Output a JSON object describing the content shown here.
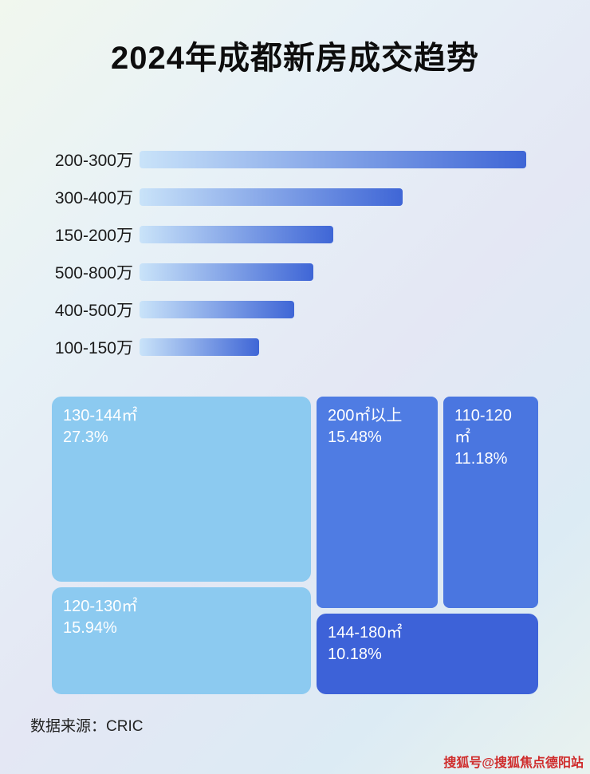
{
  "page": {
    "title": "2024年成都新房成交趋势",
    "source_label": "数据来源：CRIC",
    "watermark": "搜狐号@搜狐焦点德阳站"
  },
  "colors": {
    "bar_gradient_start": "#c9e3f9",
    "bar_gradient_end": "#3f66d6",
    "treemap_light_blue": "#8ccaf0",
    "treemap_medium_blue": "#4f7ce3",
    "treemap_dark_blue": "#3d62d8",
    "watermark_red": "#cf2b2b"
  },
  "chart_data": [
    {
      "type": "bar",
      "orientation": "horizontal",
      "title": "2024年成都新房成交趋势",
      "categories": [
        "200-300万",
        "300-400万",
        "150-200万",
        "500-800万",
        "400-500万",
        "100-150万"
      ],
      "values": [
        100,
        68,
        50,
        45,
        40,
        31
      ],
      "value_note": "no numeric labels shown in image; values are relative bar lengths with longest bar = 100",
      "xlabel": "",
      "ylabel": "",
      "grid": false,
      "legend": false,
      "bar_gradient": [
        "#c9e3f9",
        "#3f66d6"
      ]
    },
    {
      "type": "treemap",
      "title": "",
      "tiles": [
        {
          "label": "130-144㎡",
          "value_pct": 27.3,
          "value_label": "27.3%",
          "color": "#8ccaf0"
        },
        {
          "label": "200㎡以上",
          "value_pct": 15.48,
          "value_label": "15.48%",
          "color": "#4f7ce3"
        },
        {
          "label": "110-120㎡",
          "value_pct": 11.18,
          "value_label": "11.18%",
          "color": "#4a76e0"
        },
        {
          "label": "120-130㎡",
          "value_pct": 15.94,
          "value_label": "15.94%",
          "color": "#8ccaf0"
        },
        {
          "label": "144-180㎡",
          "value_pct": 10.18,
          "value_label": "10.18%",
          "color": "#3d62d8"
        }
      ]
    }
  ]
}
